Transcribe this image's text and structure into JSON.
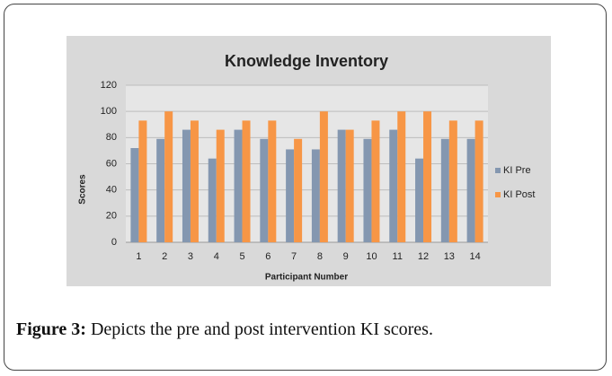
{
  "chart_data": {
    "type": "bar",
    "title": "Knowledge Inventory",
    "x_label": "Participant Number",
    "y_label": "Scores",
    "categories": [
      "1",
      "2",
      "3",
      "4",
      "5",
      "6",
      "7",
      "8",
      "9",
      "10",
      "11",
      "12",
      "13",
      "14"
    ],
    "series": [
      {
        "name": "KI Pre",
        "color": "#8497b0",
        "values": [
          72,
          79,
          86,
          64,
          86,
          79,
          71,
          71,
          86,
          79,
          86,
          64,
          79,
          79
        ]
      },
      {
        "name": "KI Post",
        "color": "#f79646",
        "values": [
          93,
          100,
          93,
          86,
          93,
          93,
          79,
          100,
          86,
          93,
          100,
          100,
          93,
          93
        ]
      }
    ],
    "ylim": [
      0,
      120
    ],
    "yticks": [
      0,
      20,
      40,
      60,
      80,
      100,
      120
    ],
    "grid": true,
    "legend": "right"
  },
  "caption": {
    "label": "Figure 3:",
    "text": "Depicts the pre and post intervention KI scores."
  }
}
